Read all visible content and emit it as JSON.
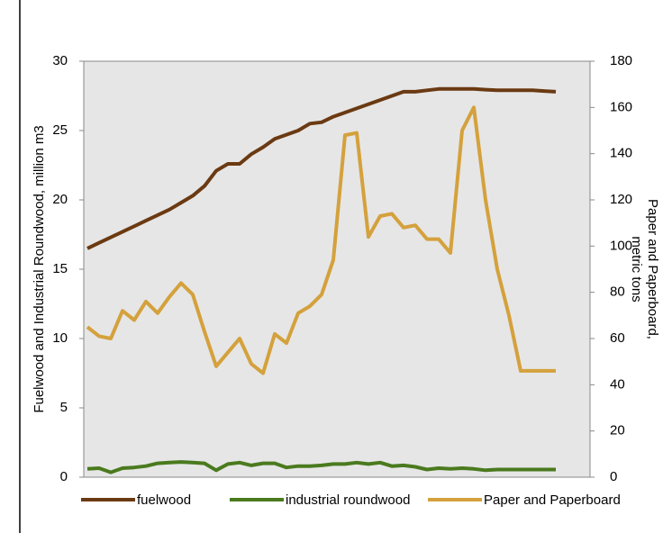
{
  "chart_data": {
    "type": "line",
    "categories": [
      null,
      null,
      null,
      null,
      null,
      null,
      null,
      null,
      null,
      null,
      null,
      null,
      null,
      null,
      null,
      null,
      null,
      null,
      null,
      null,
      null,
      null,
      null,
      null,
      null,
      null,
      null,
      null,
      null,
      null,
      null,
      null,
      null,
      null,
      null,
      null,
      null,
      null,
      null,
      null,
      null
    ],
    "y_label": "Fuelwood and Industrial Roundwood, million m3",
    "y2_label": [
      "Paper and Paperboard,",
      "metric tons"
    ],
    "ylim": [
      0,
      30
    ],
    "yticks": [
      0,
      5,
      10,
      15,
      20,
      25,
      30
    ],
    "y2lim": [
      0,
      180
    ],
    "y2ticks": [
      0,
      20,
      40,
      60,
      80,
      100,
      120,
      140,
      160,
      180
    ],
    "legend": "bottom",
    "series": [
      {
        "name": "fuelwood",
        "color": "#6b3a12",
        "values": [
          16.5,
          16.9,
          17.3,
          17.7,
          18.1,
          18.5,
          18.9,
          19.3,
          19.8,
          20.3,
          21.0,
          22.1,
          22.6,
          22.6,
          23.3,
          23.8,
          24.4,
          24.7,
          25.0,
          25.5,
          25.6,
          26.0,
          26.3,
          26.6,
          26.9,
          27.2,
          27.5,
          27.8,
          27.8,
          27.9,
          28.0,
          28.0,
          28.0,
          28.0,
          27.95,
          27.9,
          27.9,
          27.9,
          27.9,
          27.85,
          27.8
        ]
      },
      {
        "name": "industrial roundwood",
        "color": "#4a7a1e",
        "values": [
          0.6,
          0.65,
          0.35,
          0.65,
          0.7,
          0.8,
          1.0,
          1.05,
          1.1,
          1.05,
          1.0,
          0.5,
          0.95,
          1.05,
          0.85,
          1.0,
          1.0,
          0.7,
          0.8,
          0.8,
          0.85,
          0.95,
          0.95,
          1.05,
          0.95,
          1.05,
          0.8,
          0.85,
          0.75,
          0.55,
          0.65,
          0.6,
          0.65,
          0.6,
          0.5,
          0.55,
          0.55,
          0.55,
          0.55,
          0.55,
          0.55
        ]
      },
      {
        "name": "Paper and Paperboard",
        "color": "#d4a13c",
        "axis": "y2",
        "values": [
          65,
          61,
          60,
          72,
          68,
          76,
          71,
          78,
          84,
          79,
          63,
          48,
          54,
          60,
          49,
          45,
          62,
          58,
          71,
          74,
          79,
          94,
          148,
          149,
          104,
          113,
          114,
          108,
          109,
          103,
          103,
          97,
          150,
          160,
          120,
          90,
          70,
          46,
          46,
          46,
          46
        ]
      }
    ]
  }
}
